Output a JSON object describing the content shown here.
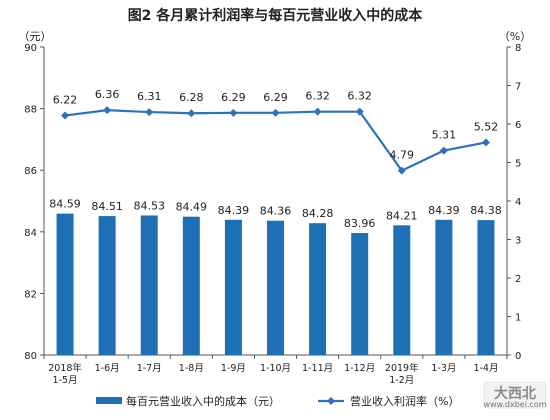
{
  "chart_data": {
    "title": "图2  各月累计利润率与每百元营业收入中的成本",
    "left_axis_unit": "（元）",
    "right_axis_unit": "（%）",
    "categories": [
      "2018年\n1-5月",
      "1-6月",
      "1-7月",
      "1-8月",
      "1-9月",
      "1-10月",
      "1-11月",
      "1-12月",
      "2019年\n1-2月",
      "1-3月",
      "1-4月"
    ],
    "series": [
      {
        "name": "每百元营业收入中的成本（元）",
        "type": "bar",
        "axis": "left",
        "color": "#1F6FB4",
        "values": [
          84.59,
          84.51,
          84.53,
          84.49,
          84.39,
          84.36,
          84.28,
          83.96,
          84.21,
          84.39,
          84.38
        ],
        "labels": [
          "84.59",
          "84.51",
          "84.53",
          "84.49",
          "84.39",
          "84.36",
          "84.28",
          "83.96",
          "84.21",
          "84.39",
          "84.38"
        ]
      },
      {
        "name": "营业收入利润率（%）",
        "type": "line",
        "axis": "right",
        "color": "#2D72C0",
        "values": [
          6.22,
          6.36,
          6.31,
          6.28,
          6.29,
          6.29,
          6.32,
          6.32,
          4.79,
          5.31,
          5.52
        ],
        "labels": [
          "6.22",
          "6.36",
          "6.31",
          "6.28",
          "6.29",
          "6.29",
          "6.32",
          "6.32",
          "4.79",
          "5.31",
          "5.52"
        ]
      }
    ],
    "left_axis": {
      "min": 80,
      "max": 90,
      "ticks": [
        "80",
        "82",
        "84",
        "86",
        "88",
        "90"
      ]
    },
    "right_axis": {
      "min": 0,
      "max": 8,
      "ticks": [
        "0",
        "1",
        "2",
        "3",
        "4",
        "5",
        "6",
        "7",
        "8"
      ]
    },
    "grid": false,
    "legend_position": "bottom"
  },
  "watermark": {
    "text": "大西北",
    "subtext": "www.dxbei.com"
  }
}
